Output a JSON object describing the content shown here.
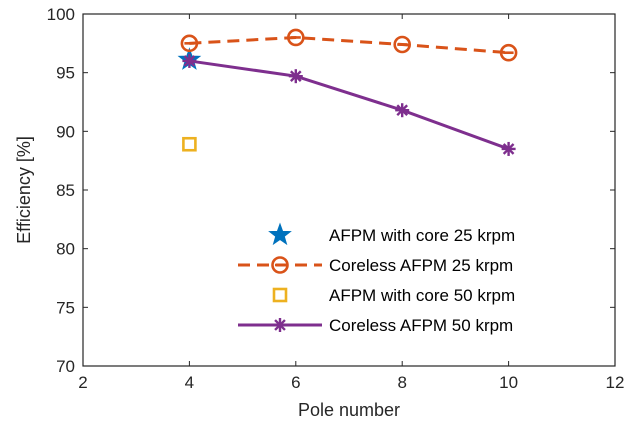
{
  "chart_data": {
    "type": "line",
    "title": "",
    "xlabel": "Pole number",
    "ylabel": "Efficiency [%]",
    "xlim": [
      2,
      12
    ],
    "ylim": [
      70,
      100
    ],
    "xticks": [
      2,
      4,
      6,
      8,
      10,
      12
    ],
    "yticks": [
      70,
      75,
      80,
      85,
      90,
      95,
      100
    ],
    "grid": false,
    "legend_position": "bottom-right",
    "series": [
      {
        "name": "AFPM with core 25 krpm",
        "x": [
          4
        ],
        "y": [
          96.1
        ],
        "color": "#0072BD",
        "marker": "star",
        "line": "none"
      },
      {
        "name": "Coreless AFPM 25 krpm",
        "x": [
          4,
          6,
          8,
          10
        ],
        "y": [
          97.5,
          98.0,
          97.4,
          96.7
        ],
        "color": "#D95319",
        "marker": "circle-dash",
        "line": "dashed"
      },
      {
        "name": "AFPM with core 50 krpm",
        "x": [
          4
        ],
        "y": [
          88.9
        ],
        "color": "#EDB120",
        "marker": "square",
        "line": "none"
      },
      {
        "name": "Coreless AFPM 50 krpm",
        "x": [
          4,
          6,
          8,
          10
        ],
        "y": [
          96.0,
          94.7,
          91.8,
          88.5
        ],
        "color": "#7E2F8E",
        "marker": "asterisk",
        "line": "solid"
      }
    ]
  }
}
